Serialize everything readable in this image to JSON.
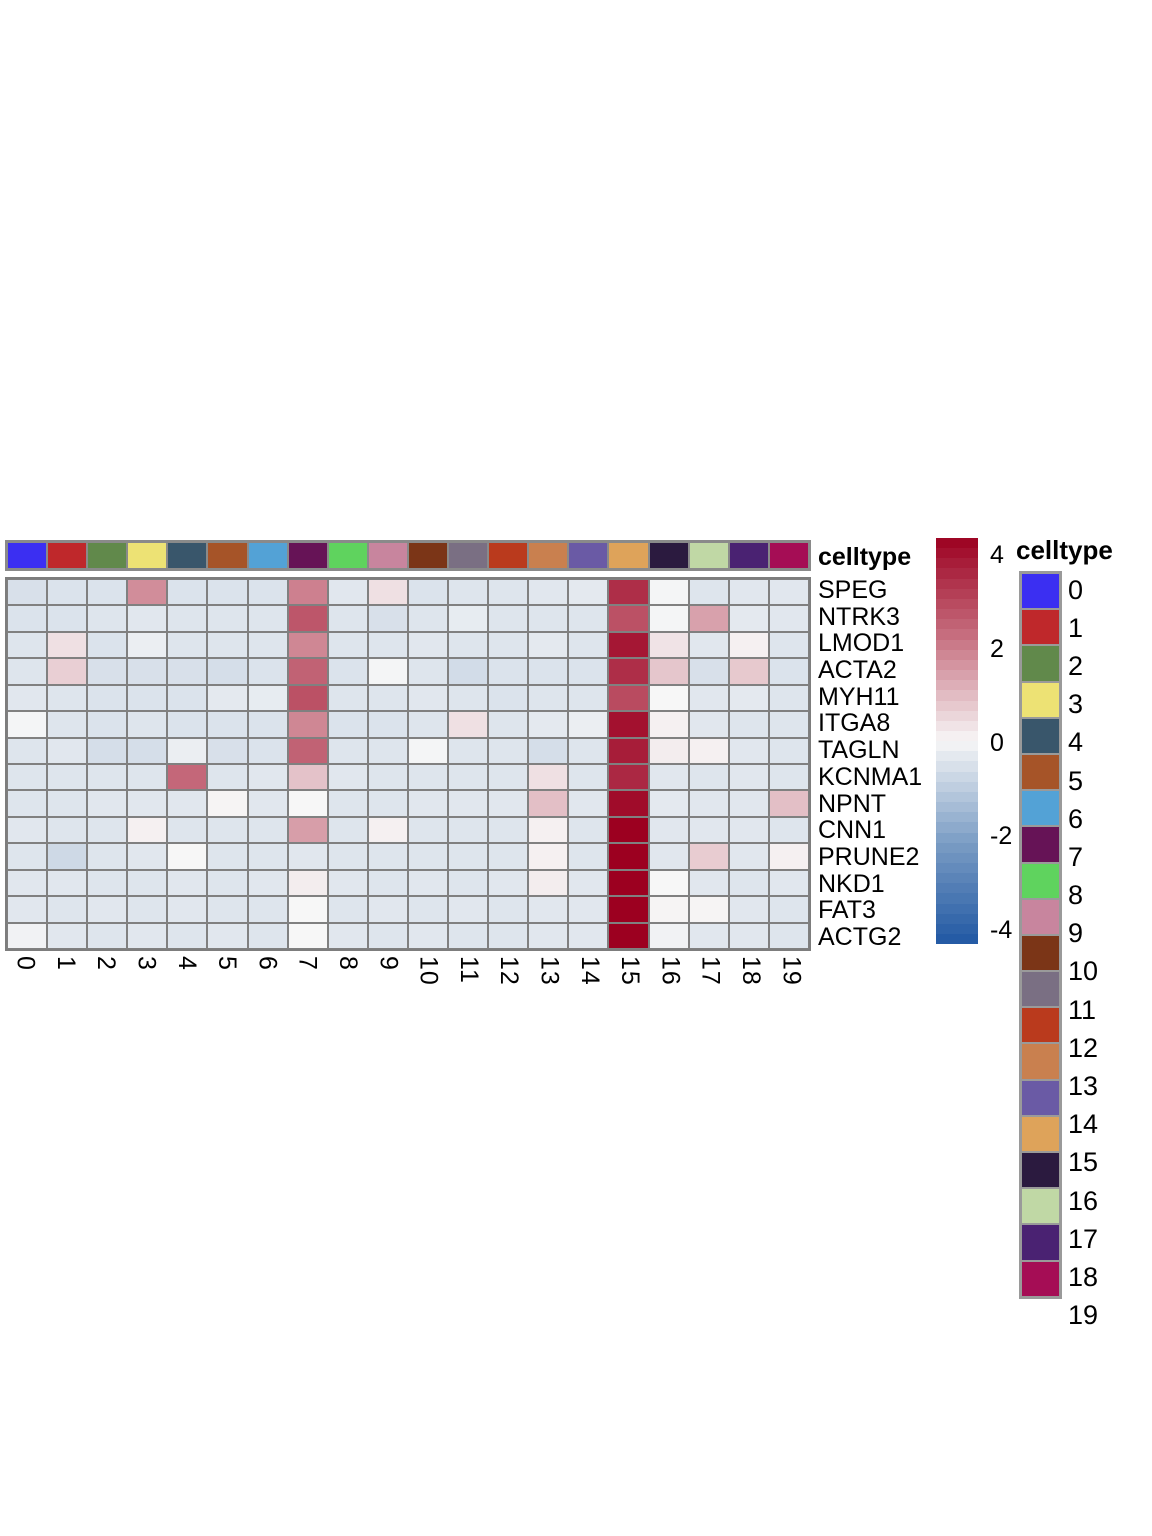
{
  "figure": {
    "row_annotation_title": "celltype",
    "legend_title": "celltype"
  },
  "chart_data": {
    "type": "heatmap",
    "rows": [
      "SPEG",
      "NTRK3",
      "LMOD1",
      "ACTA2",
      "MYH11",
      "ITGA8",
      "TAGLN",
      "KCNMA1",
      "NPNT",
      "CNN1",
      "PRUNE2",
      "NKD1",
      "FAT3",
      "ACTG2"
    ],
    "columns": [
      "0",
      "1",
      "2",
      "3",
      "4",
      "5",
      "6",
      "7",
      "8",
      "9",
      "10",
      "11",
      "12",
      "13",
      "14",
      "15",
      "16",
      "17",
      "18",
      "19"
    ],
    "values": [
      [
        -0.5,
        -0.45,
        -0.45,
        1.6,
        -0.45,
        -0.45,
        -0.45,
        1.8,
        -0.35,
        0.35,
        -0.45,
        -0.4,
        -0.4,
        -0.35,
        -0.3,
        3.2,
        -0.05,
        -0.4,
        -0.35,
        -0.35
      ],
      [
        -0.45,
        -0.45,
        -0.4,
        -0.35,
        -0.4,
        -0.4,
        -0.4,
        2.5,
        -0.4,
        -0.5,
        -0.4,
        -0.25,
        -0.4,
        -0.4,
        -0.4,
        2.6,
        -0.05,
        1.3,
        -0.3,
        -0.35
      ],
      [
        -0.4,
        0.35,
        -0.45,
        -0.2,
        -0.4,
        -0.4,
        -0.4,
        1.7,
        -0.4,
        -0.4,
        -0.35,
        -0.4,
        -0.4,
        -0.3,
        -0.4,
        3.6,
        0.3,
        -0.35,
        0.1,
        -0.4
      ],
      [
        -0.4,
        0.6,
        -0.5,
        -0.5,
        -0.5,
        -0.55,
        -0.45,
        2.3,
        -0.45,
        -0.05,
        -0.4,
        -0.6,
        -0.45,
        -0.45,
        -0.45,
        3.2,
        0.75,
        -0.5,
        0.7,
        -0.45
      ],
      [
        -0.35,
        -0.4,
        -0.45,
        -0.45,
        -0.45,
        -0.3,
        -0.25,
        2.6,
        -0.4,
        -0.4,
        -0.35,
        -0.4,
        -0.45,
        -0.4,
        -0.4,
        2.7,
        0.0,
        -0.35,
        -0.3,
        -0.4
      ],
      [
        -0.05,
        -0.4,
        -0.45,
        -0.4,
        -0.45,
        -0.45,
        -0.45,
        1.7,
        -0.45,
        -0.45,
        -0.4,
        0.35,
        -0.4,
        -0.3,
        -0.2,
        3.7,
        0.1,
        -0.35,
        -0.4,
        -0.4
      ],
      [
        -0.4,
        -0.35,
        -0.55,
        -0.55,
        -0.2,
        -0.5,
        -0.45,
        2.3,
        -0.4,
        -0.4,
        -0.05,
        -0.4,
        -0.4,
        -0.55,
        -0.4,
        3.5,
        0.15,
        0.1,
        -0.35,
        -0.4
      ],
      [
        -0.4,
        -0.4,
        -0.4,
        -0.4,
        2.2,
        -0.4,
        -0.35,
        0.8,
        -0.35,
        -0.4,
        -0.4,
        -0.4,
        -0.4,
        0.35,
        -0.4,
        3.3,
        -0.35,
        -0.4,
        -0.35,
        -0.4
      ],
      [
        -0.4,
        -0.4,
        -0.35,
        -0.35,
        -0.35,
        0.05,
        -0.35,
        0.0,
        -0.4,
        -0.4,
        -0.35,
        -0.35,
        -0.35,
        0.85,
        -0.35,
        3.8,
        -0.3,
        -0.35,
        -0.35,
        0.85
      ],
      [
        -0.35,
        -0.4,
        -0.4,
        0.1,
        -0.4,
        -0.4,
        -0.4,
        1.35,
        -0.4,
        0.1,
        -0.4,
        -0.4,
        -0.4,
        0.1,
        -0.4,
        4.0,
        -0.35,
        -0.35,
        -0.35,
        -0.4
      ],
      [
        -0.4,
        -0.65,
        -0.4,
        -0.35,
        0.0,
        -0.4,
        -0.4,
        -0.35,
        -0.4,
        -0.4,
        -0.4,
        -0.4,
        -0.4,
        0.1,
        -0.4,
        4.0,
        -0.35,
        0.65,
        -0.35,
        0.1
      ],
      [
        -0.35,
        -0.35,
        -0.4,
        -0.4,
        -0.35,
        -0.4,
        -0.35,
        0.15,
        -0.35,
        -0.4,
        -0.35,
        -0.4,
        -0.35,
        0.15,
        -0.35,
        4.0,
        0.0,
        -0.35,
        -0.4,
        -0.35
      ],
      [
        -0.35,
        -0.4,
        -0.35,
        -0.4,
        -0.35,
        -0.4,
        -0.4,
        0.0,
        -0.4,
        -0.35,
        -0.4,
        -0.35,
        -0.4,
        -0.35,
        -0.35,
        4.0,
        0.05,
        0.05,
        -0.35,
        -0.4
      ],
      [
        -0.1,
        -0.35,
        -0.4,
        -0.35,
        -0.4,
        -0.35,
        -0.4,
        0.0,
        -0.35,
        -0.4,
        -0.35,
        -0.4,
        -0.4,
        -0.35,
        -0.35,
        4.0,
        -0.1,
        -0.35,
        -0.35,
        -0.4
      ]
    ],
    "value_range": [
      -4,
      4
    ],
    "colormap_stops": [
      {
        "v": 4,
        "c": "#9C0020"
      },
      {
        "v": 2,
        "c": "#C87383"
      },
      {
        "v": 0,
        "c": "#F7F7F7"
      },
      {
        "v": -2,
        "c": "#7A9CC4"
      },
      {
        "v": -4,
        "c": "#2158A3"
      }
    ],
    "colorbar_ticks": [
      "4",
      "2",
      "0",
      "-2",
      "-4"
    ],
    "column_annotation": {
      "name": "celltype",
      "colors": [
        "#3B2FF2",
        "#BF282B",
        "#61894B",
        "#EDE274",
        "#39566B",
        "#A65428",
        "#53A2D6",
        "#661356",
        "#5FD35E",
        "#C8859E",
        "#7B3517",
        "#7A6F83",
        "#BA3A1D",
        "#C9804F",
        "#6A5AA5",
        "#DEA35A",
        "#2B1A3F",
        "#C0D8A5",
        "#4A2272",
        "#A50D55"
      ]
    }
  },
  "legend": {
    "title": "celltype",
    "items": [
      {
        "label": "0",
        "color": "#3B2FF2"
      },
      {
        "label": "1",
        "color": "#BF282B"
      },
      {
        "label": "2",
        "color": "#61894B"
      },
      {
        "label": "3",
        "color": "#EDE274"
      },
      {
        "label": "4",
        "color": "#39566B"
      },
      {
        "label": "5",
        "color": "#A65428"
      },
      {
        "label": "6",
        "color": "#53A2D6"
      },
      {
        "label": "7",
        "color": "#661356"
      },
      {
        "label": "8",
        "color": "#5FD35E"
      },
      {
        "label": "9",
        "color": "#C8859E"
      },
      {
        "label": "10",
        "color": "#7B3517"
      },
      {
        "label": "11",
        "color": "#7A6F83"
      },
      {
        "label": "12",
        "color": "#BA3A1D"
      },
      {
        "label": "13",
        "color": "#C9804F"
      },
      {
        "label": "14",
        "color": "#6A5AA5"
      },
      {
        "label": "15",
        "color": "#DEA35A"
      },
      {
        "label": "16",
        "color": "#2B1A3F"
      },
      {
        "label": "17",
        "color": "#C0D8A5"
      },
      {
        "label": "18",
        "color": "#4A2272"
      },
      {
        "label": "19",
        "color": "#A50D55"
      }
    ]
  }
}
